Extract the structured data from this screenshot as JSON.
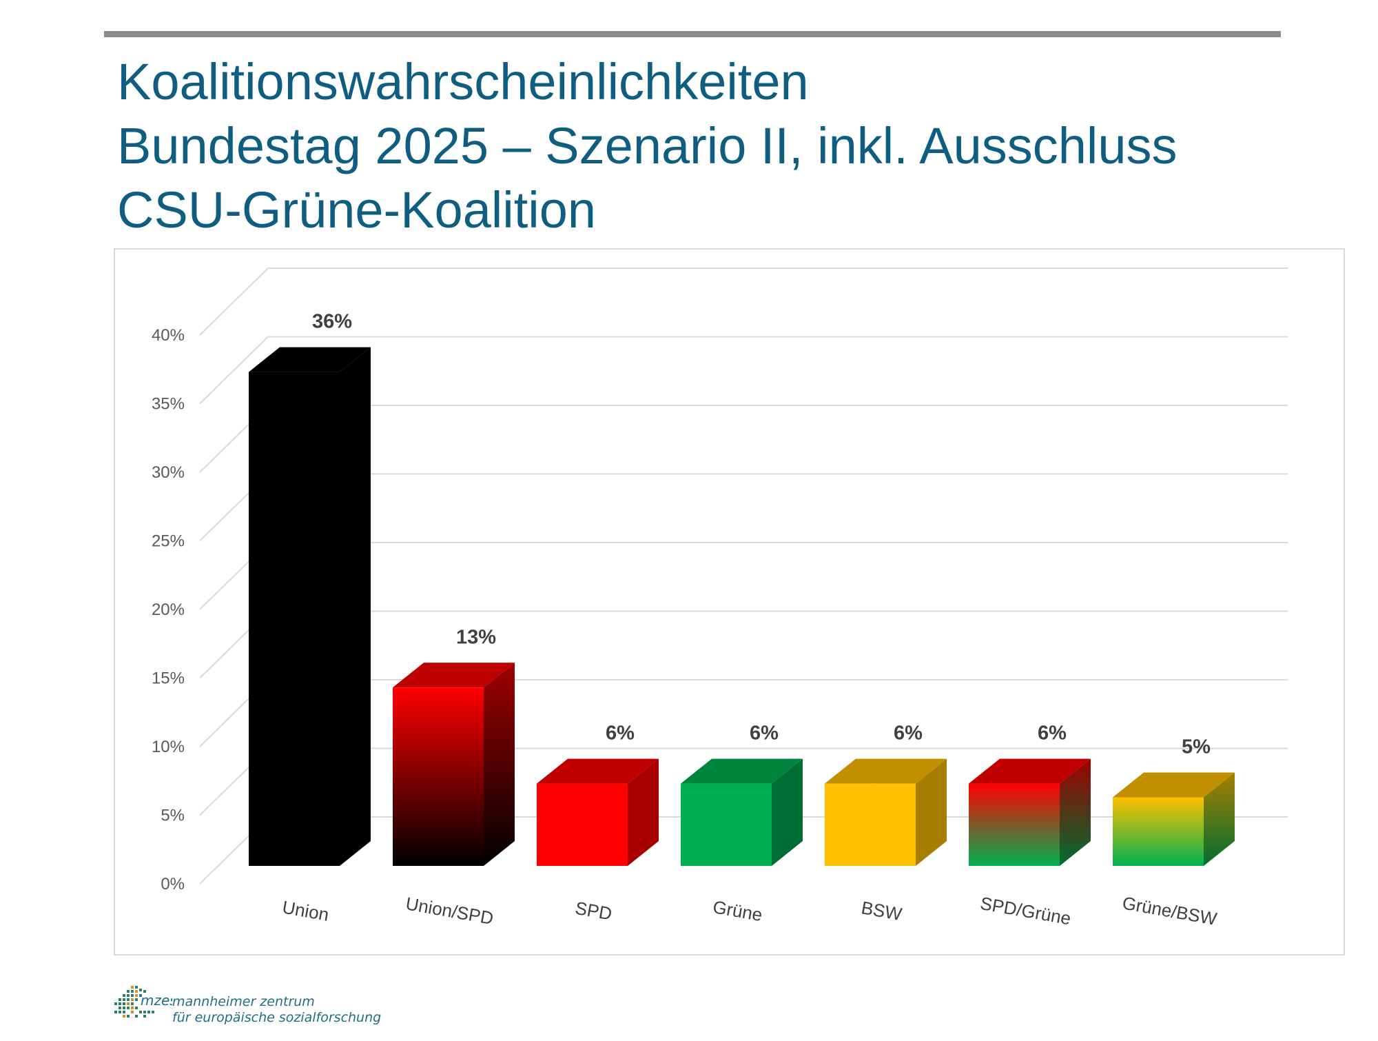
{
  "title": {
    "line1": "Koalitionswahrscheinlichkeiten",
    "line2": "Bundestag 2025 – Szenario II, inkl. Ausschluss",
    "line3": "CSU-Grüne-Koalition"
  },
  "colors": {
    "title": "#0f5e82",
    "topbar": "#8c8c8c",
    "grid": "#d9d9d9"
  },
  "chart_data": {
    "type": "bar",
    "style": "3d-column",
    "categories": [
      "Union",
      "Union/SPD",
      "SPD",
      "Grüne",
      "BSW",
      "SPD/Grüne",
      "Grüne/BSW"
    ],
    "values": [
      36,
      13,
      6,
      6,
      6,
      6,
      5
    ],
    "data_labels": [
      "36%",
      "13%",
      "6%",
      "6%",
      "6%",
      "6%",
      "5%"
    ],
    "ylim": [
      0,
      40
    ],
    "yticks": [
      "0%",
      "5%",
      "10%",
      "15%",
      "20%",
      "25%",
      "30%",
      "35%",
      "40%"
    ],
    "grid": true,
    "bar_colors": [
      {
        "front": [
          "#000000",
          "#000000"
        ],
        "top": "#000000",
        "side": [
          "#000000",
          "#000000"
        ]
      },
      {
        "front": [
          "#ff0000",
          "#000000"
        ],
        "top": "#c00000",
        "side": [
          "#a00000",
          "#000000"
        ]
      },
      {
        "front": [
          "#ff0000",
          "#ff0000"
        ],
        "top": "#c00000",
        "side": [
          "#a80000",
          "#a80000"
        ]
      },
      {
        "front": [
          "#00b050",
          "#00b050"
        ],
        "top": "#00863c",
        "side": [
          "#006e32",
          "#006e32"
        ]
      },
      {
        "front": [
          "#ffc000",
          "#ffc000"
        ],
        "top": "#c09000",
        "side": [
          "#a87e00",
          "#a87e00"
        ]
      },
      {
        "front": [
          "#ff0000",
          "#00b050"
        ],
        "top": "#c00000",
        "side": [
          "#a00000",
          "#006e32"
        ]
      },
      {
        "front": [
          "#ffc000",
          "#00b050"
        ],
        "top": "#c09000",
        "side": [
          "#a87e00",
          "#006e32"
        ]
      }
    ]
  },
  "logo": {
    "mark": "mzes",
    "line1": "mannheimer zentrum",
    "line2": "für europäische sozialforschung"
  }
}
